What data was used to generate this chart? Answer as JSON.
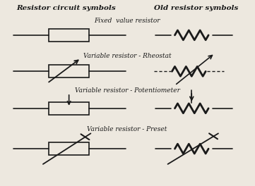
{
  "title_left": "Resistor circuit symbols",
  "title_right": "Old resistor symbols",
  "labels": [
    "Fixed  value resistor",
    "Variable resistor - Rheostat",
    "Variable resistor - Potentiometer",
    "Variable resistor - Preset"
  ],
  "bg_color": "#ede8df",
  "line_color": "#1a1a1a",
  "figsize": [
    3.61,
    2.64
  ],
  "dpi": 100
}
